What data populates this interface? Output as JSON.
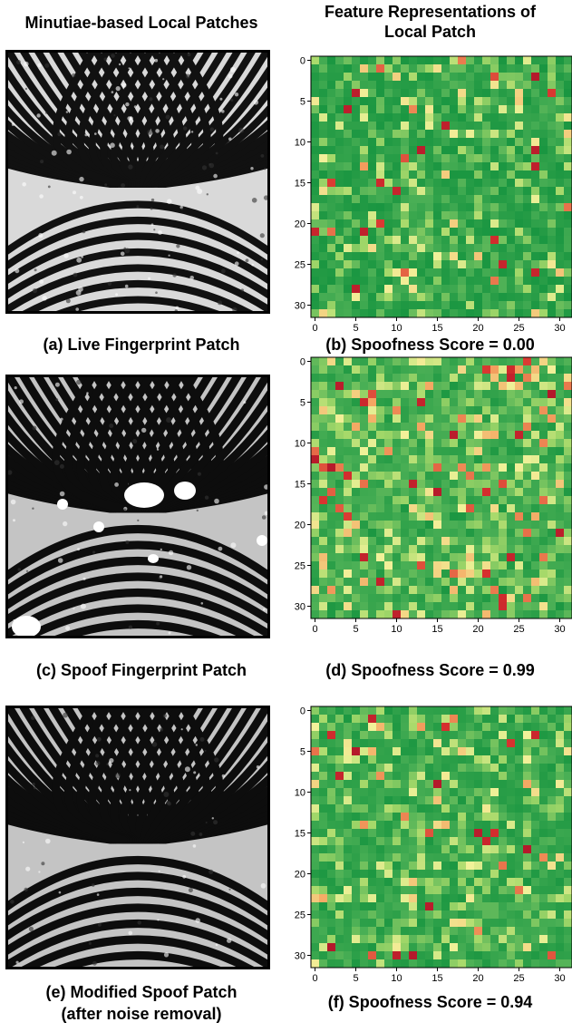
{
  "headers": {
    "left": "Minutiae-based Local Patches",
    "right_line1": "Feature Representations of",
    "right_line2": "Local Patch"
  },
  "rows": [
    {
      "patch_caption": "(a) Live Fingerprint Patch",
      "patch_kind": "live",
      "heatmap_caption": "(b) Spoofness Score = 0.00",
      "score": 0.0
    },
    {
      "patch_caption": "(c) Spoof Fingerprint Patch",
      "patch_kind": "spoof",
      "heatmap_caption": "(d) Spoofness Score = 0.99",
      "score": 0.99
    },
    {
      "patch_caption_line1": "(e) Modified Spoof Patch",
      "patch_caption_line2": "(after noise removal)",
      "patch_kind": "modified-spoof",
      "heatmap_caption": "(f) Spoofness Score = 0.94",
      "score": 0.94
    }
  ],
  "chart_data": [
    {
      "type": "heatmap",
      "grid_size": [
        32,
        32
      ],
      "x_ticks": [
        "0",
        "5",
        "10",
        "15",
        "20",
        "25",
        "30"
      ],
      "y_ticks": [
        "0",
        "5",
        "10",
        "15",
        "20",
        "25",
        "30"
      ],
      "colormap": "RdYlGn_r",
      "score": 0.0,
      "caption": "(b) Spoofness Score = 0.00"
    },
    {
      "type": "heatmap",
      "grid_size": [
        32,
        32
      ],
      "x_ticks": [
        "0",
        "5",
        "10",
        "15",
        "20",
        "25",
        "30"
      ],
      "y_ticks": [
        "0",
        "5",
        "10",
        "15",
        "20",
        "25",
        "30"
      ],
      "colormap": "RdYlGn_r",
      "score": 0.99,
      "caption": "(d) Spoofness Score = 0.99"
    },
    {
      "type": "heatmap",
      "grid_size": [
        32,
        32
      ],
      "x_ticks": [
        "0",
        "5",
        "10",
        "15",
        "20",
        "25",
        "30"
      ],
      "y_ticks": [
        "0",
        "5",
        "10",
        "15",
        "20",
        "25",
        "30"
      ],
      "colormap": "RdYlGn_r",
      "score": 0.94,
      "caption": "(f) Spoofness Score = 0.94"
    }
  ],
  "colors": {
    "dark_green": "#1a9641",
    "green": "#4aaf55",
    "light_green": "#a6d96a",
    "pale_yellow": "#f2f29a",
    "orange": "#f4a460",
    "red": "#d7302e",
    "dark_red": "#b2182b"
  }
}
